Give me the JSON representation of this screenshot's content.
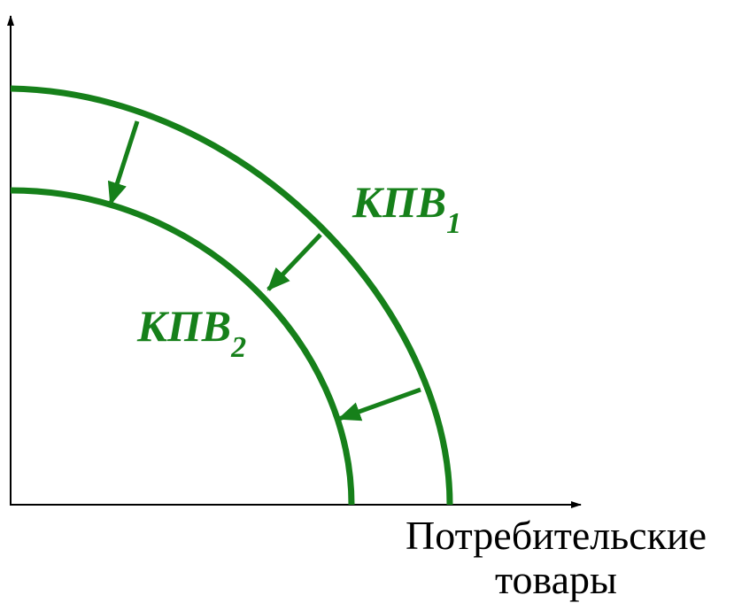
{
  "curves": [
    {
      "label": "КПВ",
      "subscript": "1"
    },
    {
      "label": "КПВ",
      "subscript": "2"
    }
  ],
  "x_axis_label": {
    "line1": "Потребительские",
    "line2": "товары"
  }
}
